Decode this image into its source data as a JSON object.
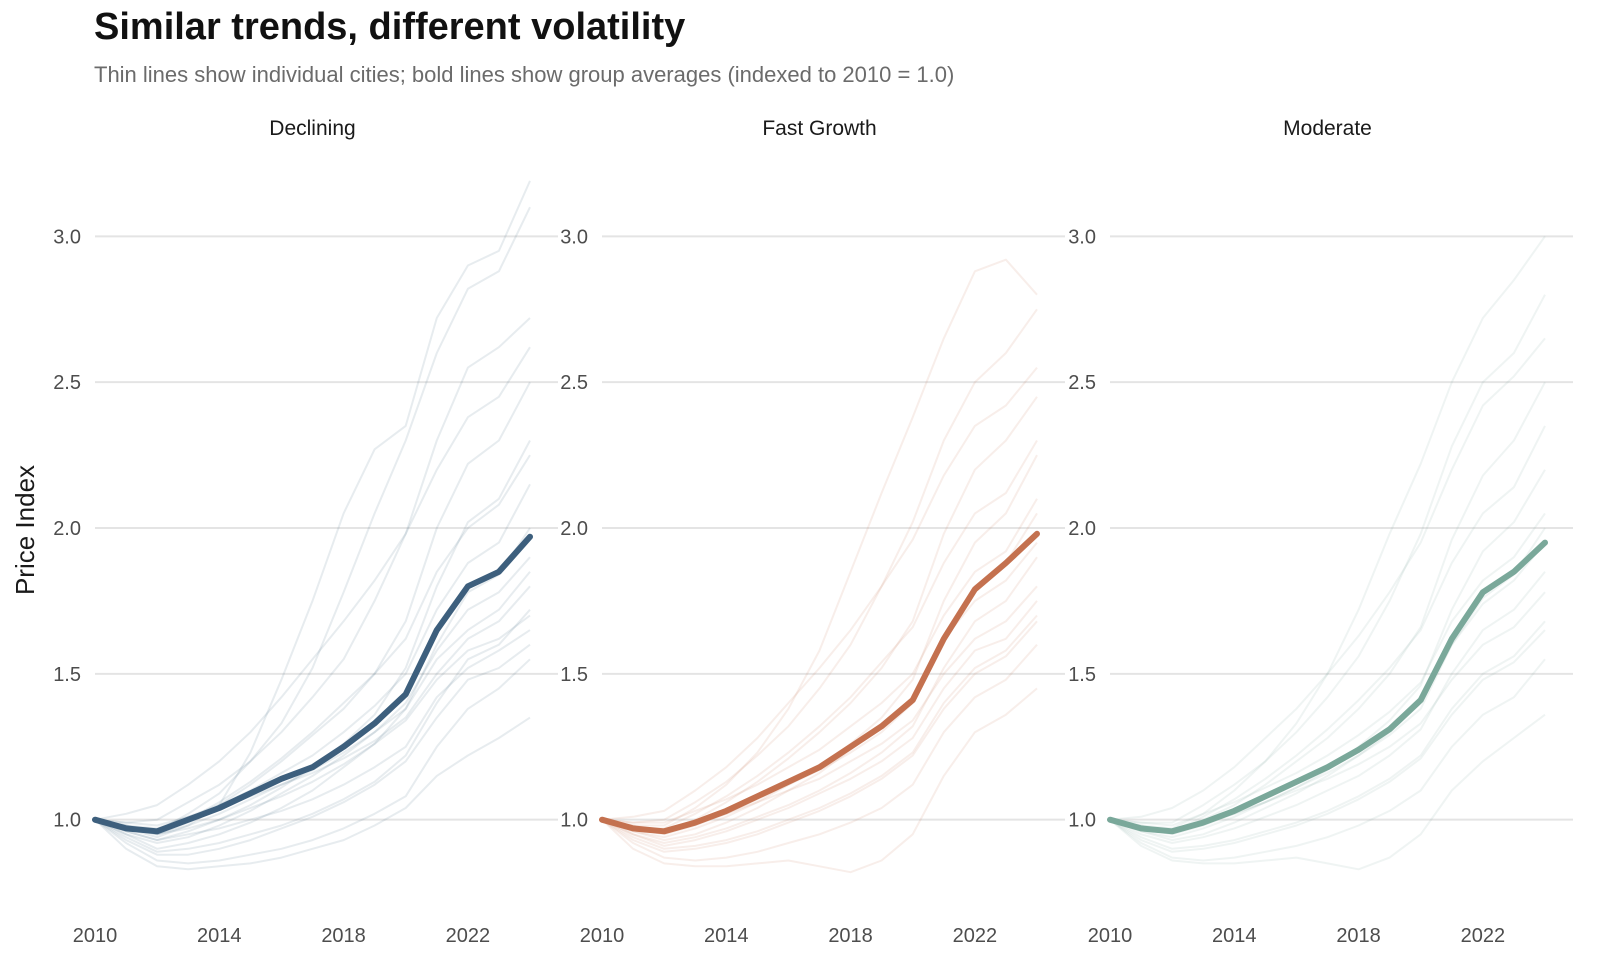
{
  "chart_data": {
    "type": "line",
    "title": "Similar trends, different volatility",
    "subtitle": "Thin lines show individual cities; bold lines show group averages (indexed to 2010 = 1.0)",
    "ylabel": "Price Index",
    "xlabel": "",
    "xlim": [
      2010,
      2024
    ],
    "ylim": [
      0.8,
      3.2
    ],
    "x_ticks": [
      "2010",
      "2014",
      "2018",
      "2022"
    ],
    "y_ticks": [
      "1.0",
      "1.5",
      "2.0",
      "2.5",
      "3.0"
    ],
    "grid": "horizontal",
    "x": [
      2010,
      2011,
      2012,
      2013,
      2014,
      2015,
      2016,
      2017,
      2018,
      2019,
      2020,
      2021,
      2022,
      2023,
      2024
    ],
    "panels": [
      {
        "name": "Declining",
        "color": "#3d5f7d",
        "average": [
          1.0,
          0.97,
          0.96,
          1.0,
          1.04,
          1.09,
          1.14,
          1.18,
          1.25,
          1.33,
          1.43,
          1.65,
          1.8,
          1.85,
          1.97
        ],
        "individual_cities": [
          [
            1.0,
            0.97,
            0.94,
            0.98,
            1.05,
            1.23,
            1.48,
            1.75,
            2.05,
            2.27,
            2.35,
            2.72,
            2.9,
            2.95,
            3.19
          ],
          [
            1.0,
            0.98,
            0.96,
            1.02,
            1.09,
            1.2,
            1.33,
            1.52,
            1.78,
            2.05,
            2.3,
            2.6,
            2.82,
            2.88,
            3.1
          ],
          [
            1.0,
            0.99,
            1.0,
            1.06,
            1.12,
            1.2,
            1.3,
            1.42,
            1.55,
            1.75,
            1.98,
            2.3,
            2.55,
            2.62,
            2.72
          ],
          [
            1.0,
            0.97,
            0.95,
            0.99,
            1.05,
            1.12,
            1.2,
            1.29,
            1.38,
            1.5,
            1.68,
            2.0,
            2.22,
            2.3,
            2.5
          ],
          [
            1.0,
            0.96,
            0.93,
            0.96,
            1.0,
            1.05,
            1.11,
            1.18,
            1.26,
            1.36,
            1.52,
            1.8,
            2.02,
            2.1,
            2.3
          ],
          [
            1.0,
            0.98,
            0.97,
            1.01,
            1.05,
            1.1,
            1.16,
            1.22,
            1.3,
            1.39,
            1.5,
            1.72,
            1.88,
            1.95,
            2.15
          ],
          [
            1.0,
            0.95,
            0.9,
            0.92,
            0.95,
            0.99,
            1.04,
            1.1,
            1.18,
            1.26,
            1.38,
            1.6,
            1.78,
            1.84,
            2.0
          ],
          [
            1.0,
            0.97,
            0.95,
            0.98,
            1.02,
            1.07,
            1.12,
            1.17,
            1.23,
            1.3,
            1.4,
            1.58,
            1.72,
            1.78,
            1.9
          ],
          [
            1.0,
            0.99,
            0.98,
            1.01,
            1.04,
            1.08,
            1.12,
            1.16,
            1.21,
            1.27,
            1.35,
            1.5,
            1.62,
            1.68,
            1.8
          ],
          [
            1.0,
            0.94,
            0.89,
            0.9,
            0.92,
            0.95,
            0.98,
            1.02,
            1.07,
            1.13,
            1.22,
            1.4,
            1.55,
            1.6,
            1.72
          ],
          [
            1.0,
            0.96,
            0.93,
            0.95,
            0.97,
            1.0,
            1.03,
            1.07,
            1.12,
            1.18,
            1.25,
            1.42,
            1.52,
            1.58,
            1.65
          ],
          [
            1.0,
            0.92,
            0.86,
            0.85,
            0.86,
            0.88,
            0.9,
            0.93,
            0.97,
            1.02,
            1.08,
            1.25,
            1.38,
            1.45,
            1.55
          ],
          [
            1.0,
            0.9,
            0.84,
            0.83,
            0.84,
            0.85,
            0.87,
            0.9,
            0.93,
            0.98,
            1.04,
            1.15,
            1.22,
            1.28,
            1.35
          ],
          [
            1.0,
            1.02,
            1.05,
            1.12,
            1.2,
            1.3,
            1.42,
            1.55,
            1.68,
            1.82,
            1.98,
            2.2,
            2.38,
            2.45,
            2.62
          ],
          [
            1.0,
            0.97,
            0.96,
            1.0,
            1.06,
            1.13,
            1.21,
            1.3,
            1.4,
            1.5,
            1.62,
            1.85,
            2.0,
            2.08,
            2.25
          ],
          [
            1.0,
            0.95,
            0.92,
            0.94,
            0.98,
            1.03,
            1.09,
            1.15,
            1.22,
            1.3,
            1.38,
            1.55,
            1.65,
            1.72,
            1.85
          ],
          [
            1.0,
            0.98,
            0.95,
            0.97,
            1.0,
            1.04,
            1.08,
            1.13,
            1.19,
            1.26,
            1.34,
            1.48,
            1.58,
            1.62,
            1.7
          ],
          [
            1.0,
            0.93,
            0.88,
            0.88,
            0.9,
            0.93,
            0.97,
            1.01,
            1.06,
            1.12,
            1.2,
            1.35,
            1.48,
            1.52,
            1.6
          ]
        ]
      },
      {
        "name": "Fast Growth",
        "color": "#c4714f",
        "average": [
          1.0,
          0.97,
          0.96,
          0.99,
          1.03,
          1.08,
          1.13,
          1.18,
          1.25,
          1.32,
          1.41,
          1.62,
          1.79,
          1.88,
          1.98
        ],
        "individual_cities": [
          [
            1.0,
            0.98,
            0.98,
            1.04,
            1.12,
            1.23,
            1.38,
            1.58,
            1.85,
            2.12,
            2.38,
            2.65,
            2.88,
            2.92,
            2.8
          ],
          [
            1.0,
            0.99,
            1.0,
            1.06,
            1.13,
            1.22,
            1.32,
            1.45,
            1.6,
            1.8,
            2.02,
            2.3,
            2.5,
            2.6,
            2.75
          ],
          [
            1.0,
            0.97,
            0.96,
            1.0,
            1.06,
            1.13,
            1.21,
            1.3,
            1.4,
            1.52,
            1.68,
            1.98,
            2.2,
            2.3,
            2.45
          ],
          [
            1.0,
            0.96,
            0.94,
            0.97,
            1.01,
            1.06,
            1.12,
            1.18,
            1.26,
            1.35,
            1.48,
            1.75,
            1.95,
            2.05,
            2.25
          ],
          [
            1.0,
            0.97,
            0.95,
            0.98,
            1.02,
            1.07,
            1.12,
            1.17,
            1.23,
            1.3,
            1.4,
            1.62,
            1.8,
            1.88,
            2.05
          ],
          [
            1.0,
            0.95,
            0.92,
            0.94,
            0.97,
            1.01,
            1.05,
            1.1,
            1.16,
            1.23,
            1.32,
            1.52,
            1.68,
            1.75,
            1.9
          ],
          [
            1.0,
            0.98,
            0.96,
            0.99,
            1.02,
            1.06,
            1.1,
            1.14,
            1.2,
            1.26,
            1.34,
            1.5,
            1.62,
            1.68,
            1.8
          ],
          [
            1.0,
            0.94,
            0.9,
            0.91,
            0.93,
            0.96,
            1.0,
            1.04,
            1.09,
            1.15,
            1.23,
            1.4,
            1.52,
            1.58,
            1.7
          ],
          [
            1.0,
            0.92,
            0.87,
            0.86,
            0.87,
            0.89,
            0.92,
            0.95,
            0.99,
            1.04,
            1.12,
            1.3,
            1.42,
            1.48,
            1.6
          ],
          [
            1.0,
            0.9,
            0.85,
            0.84,
            0.84,
            0.85,
            0.86,
            0.84,
            0.82,
            0.86,
            0.95,
            1.15,
            1.3,
            1.36,
            1.45
          ],
          [
            1.0,
            1.01,
            1.03,
            1.1,
            1.18,
            1.28,
            1.4,
            1.52,
            1.65,
            1.8,
            1.96,
            2.18,
            2.35,
            2.42,
            2.55
          ],
          [
            1.0,
            0.97,
            0.97,
            1.02,
            1.08,
            1.15,
            1.23,
            1.32,
            1.42,
            1.54,
            1.66,
            1.88,
            2.05,
            2.12,
            2.3
          ],
          [
            1.0,
            0.96,
            0.93,
            0.95,
            0.99,
            1.04,
            1.1,
            1.16,
            1.24,
            1.32,
            1.42,
            1.62,
            1.75,
            1.82,
            1.95
          ],
          [
            1.0,
            0.93,
            0.89,
            0.9,
            0.92,
            0.95,
            0.99,
            1.03,
            1.08,
            1.14,
            1.22,
            1.38,
            1.5,
            1.56,
            1.68
          ],
          [
            1.0,
            0.99,
            0.99,
            1.03,
            1.07,
            1.12,
            1.18,
            1.24,
            1.32,
            1.4,
            1.5,
            1.7,
            1.85,
            1.92,
            2.1
          ],
          [
            1.0,
            0.95,
            0.91,
            0.93,
            0.96,
            1.0,
            1.04,
            1.09,
            1.14,
            1.2,
            1.28,
            1.45,
            1.58,
            1.62,
            1.75
          ]
        ]
      },
      {
        "name": "Moderate",
        "color": "#7aa89a",
        "average": [
          1.0,
          0.97,
          0.96,
          0.99,
          1.03,
          1.08,
          1.13,
          1.18,
          1.24,
          1.31,
          1.41,
          1.62,
          1.78,
          1.85,
          1.95
        ],
        "individual_cities": [
          [
            1.0,
            0.98,
            0.97,
            1.02,
            1.1,
            1.2,
            1.33,
            1.5,
            1.72,
            1.98,
            2.22,
            2.5,
            2.72,
            2.85,
            3.0
          ],
          [
            1.0,
            0.99,
            0.99,
            1.05,
            1.12,
            1.2,
            1.3,
            1.42,
            1.56,
            1.75,
            1.98,
            2.28,
            2.5,
            2.6,
            2.8
          ],
          [
            1.0,
            0.97,
            0.96,
            1.0,
            1.05,
            1.12,
            1.2,
            1.28,
            1.38,
            1.5,
            1.66,
            1.96,
            2.18,
            2.3,
            2.5
          ],
          [
            1.0,
            0.96,
            0.94,
            0.97,
            1.01,
            1.06,
            1.11,
            1.17,
            1.25,
            1.34,
            1.46,
            1.72,
            1.92,
            2.02,
            2.2
          ],
          [
            1.0,
            0.97,
            0.95,
            0.98,
            1.02,
            1.06,
            1.11,
            1.16,
            1.22,
            1.29,
            1.38,
            1.6,
            1.76,
            1.84,
            2.0
          ],
          [
            1.0,
            0.95,
            0.92,
            0.94,
            0.97,
            1.01,
            1.05,
            1.1,
            1.15,
            1.22,
            1.31,
            1.5,
            1.65,
            1.72,
            1.85
          ],
          [
            1.0,
            0.98,
            0.96,
            0.99,
            1.02,
            1.06,
            1.1,
            1.14,
            1.19,
            1.25,
            1.33,
            1.48,
            1.6,
            1.66,
            1.78
          ],
          [
            1.0,
            0.94,
            0.9,
            0.91,
            0.93,
            0.96,
            0.99,
            1.03,
            1.08,
            1.14,
            1.22,
            1.38,
            1.5,
            1.56,
            1.68
          ],
          [
            1.0,
            0.92,
            0.87,
            0.86,
            0.87,
            0.89,
            0.91,
            0.94,
            0.98,
            1.03,
            1.1,
            1.25,
            1.36,
            1.42,
            1.55
          ],
          [
            1.0,
            0.91,
            0.86,
            0.85,
            0.85,
            0.86,
            0.87,
            0.85,
            0.83,
            0.87,
            0.95,
            1.1,
            1.2,
            1.28,
            1.36
          ],
          [
            1.0,
            1.01,
            1.04,
            1.1,
            1.18,
            1.28,
            1.38,
            1.5,
            1.63,
            1.78,
            1.95,
            2.2,
            2.42,
            2.52,
            2.65
          ],
          [
            1.0,
            0.97,
            0.96,
            1.01,
            1.07,
            1.14,
            1.22,
            1.31,
            1.41,
            1.52,
            1.65,
            1.88,
            2.05,
            2.14,
            2.35
          ],
          [
            1.0,
            0.96,
            0.93,
            0.95,
            0.99,
            1.04,
            1.09,
            1.15,
            1.22,
            1.3,
            1.4,
            1.6,
            1.74,
            1.82,
            1.95
          ],
          [
            1.0,
            0.93,
            0.89,
            0.9,
            0.92,
            0.95,
            0.98,
            1.02,
            1.07,
            1.13,
            1.21,
            1.36,
            1.48,
            1.54,
            1.65
          ],
          [
            1.0,
            0.99,
            0.98,
            1.02,
            1.06,
            1.11,
            1.16,
            1.22,
            1.29,
            1.37,
            1.47,
            1.68,
            1.82,
            1.9,
            2.05
          ]
        ]
      }
    ]
  }
}
